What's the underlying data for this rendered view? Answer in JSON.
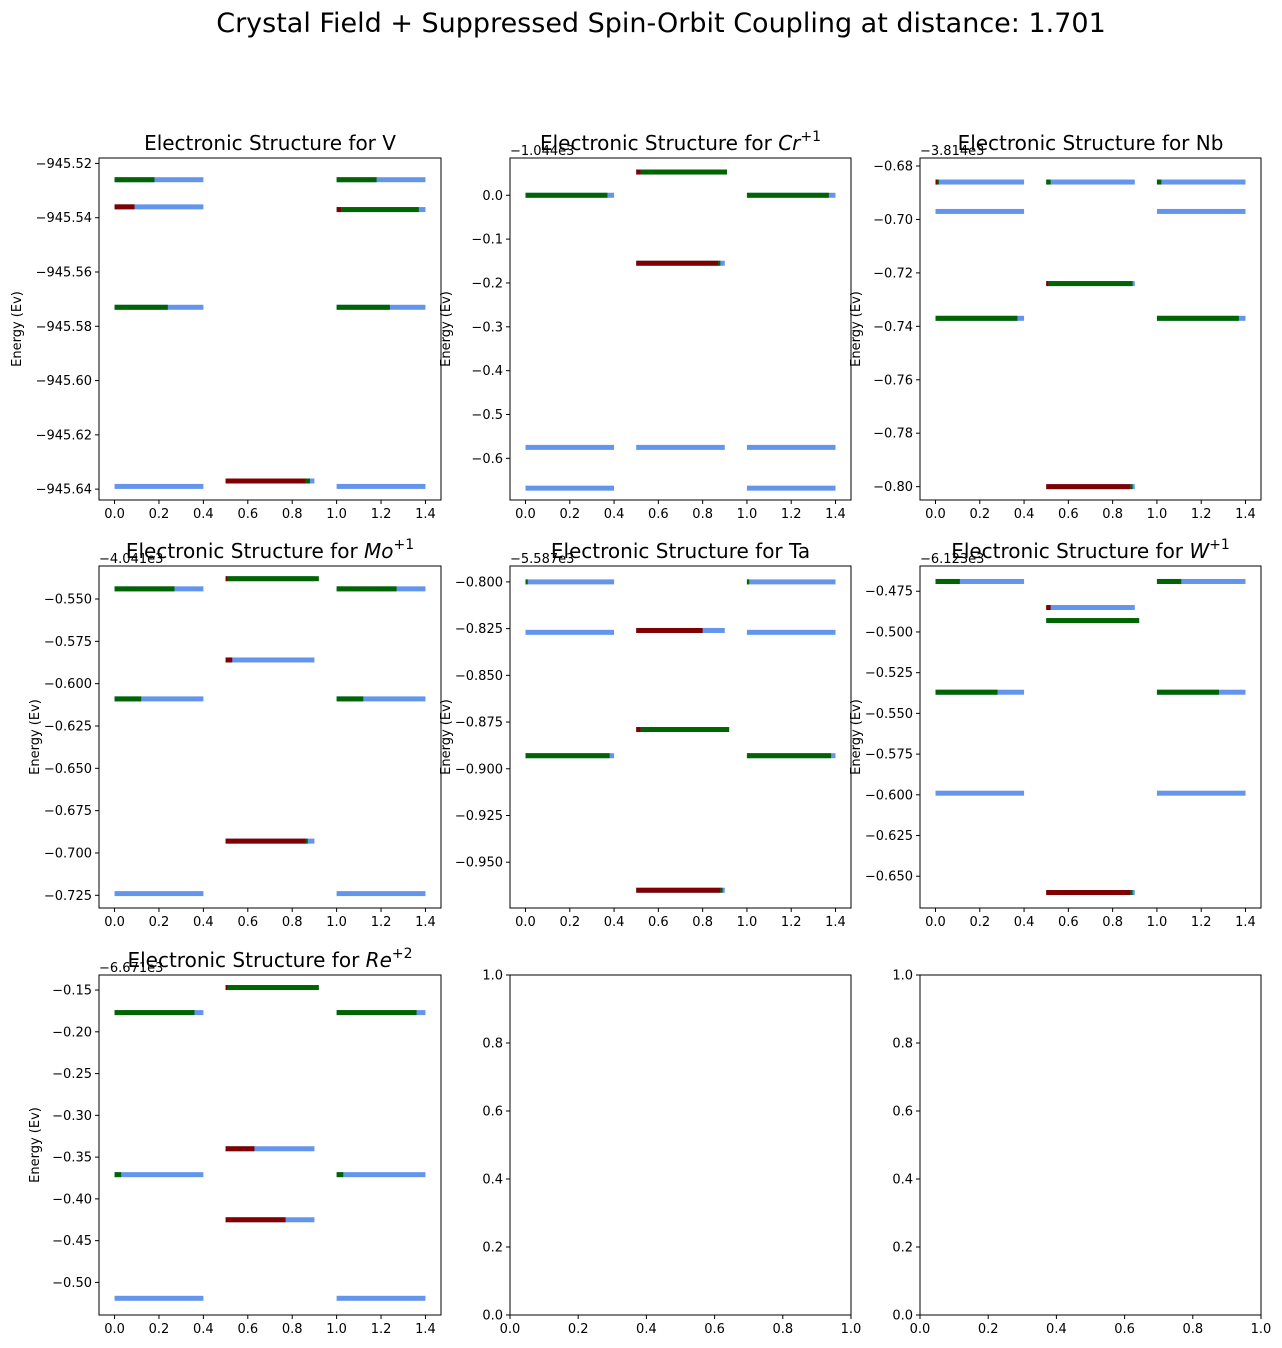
{
  "figure": {
    "title": "Crystal Field + Suppressed Spin-Orbit Coupling at distance: 1.701"
  },
  "colors": {
    "spin_down": "#800000",
    "paired": "#006400",
    "empty": "#6495ED"
  },
  "chart_data": [
    {
      "type": "bar",
      "title": "Electronic Structure for V",
      "title_base": "Electronic Structure for V",
      "title_sup": "",
      "ylabel": "Energy (Ev)",
      "offset_text": "",
      "xlim": [
        -0.07,
        1.47
      ],
      "ylim": [
        -945.644,
        -945.518
      ],
      "xticks": [
        0.0,
        0.2,
        0.4,
        0.6,
        0.8,
        1.0,
        1.2,
        1.4
      ],
      "xtick_labels": [
        "0.0",
        "0.2",
        "0.4",
        "0.6",
        "0.8",
        "1.0",
        "1.2",
        "1.4"
      ],
      "yticks": [
        -945.64,
        -945.62,
        -945.6,
        -945.58,
        -945.56,
        -945.54,
        -945.52
      ],
      "ytick_labels": [
        "−945.64",
        "−945.62",
        "−945.60",
        "−945.58",
        "−945.56",
        "−945.54",
        "−945.52"
      ],
      "levels": [
        {
          "x": 0.0,
          "y": -945.526,
          "fill": [
            0.0,
            0.18
          ],
          "color": "paired"
        },
        {
          "x": 0.0,
          "y": -945.536,
          "fill": [
            0.0,
            0.09
          ],
          "color": "spin_down"
        },
        {
          "x": 0.0,
          "y": -945.573,
          "fill": [
            0.0,
            0.24
          ],
          "color": "paired"
        },
        {
          "x": 0.0,
          "y": -945.639,
          "fill": [
            0.0,
            0.0
          ],
          "color": "paired"
        },
        {
          "x": 0.5,
          "y": -945.637,
          "fill": [
            0.0,
            0.36
          ],
          "color": "spin_down",
          "fill2": [
            0.36,
            0.38
          ],
          "color2": "paired"
        },
        {
          "x": 1.0,
          "y": -945.526,
          "fill": [
            0.0,
            0.18
          ],
          "color": "paired"
        },
        {
          "x": 1.0,
          "y": -945.537,
          "fill": [
            0.0,
            0.02
          ],
          "color": "spin_down",
          "fill2": [
            0.02,
            0.37
          ],
          "color2": "paired"
        },
        {
          "x": 1.0,
          "y": -945.573,
          "fill": [
            0.0,
            0.24
          ],
          "color": "paired"
        },
        {
          "x": 1.0,
          "y": -945.639,
          "fill": [
            0.0,
            0.0
          ],
          "color": "paired"
        }
      ]
    },
    {
      "type": "bar",
      "title": "Electronic Structure for Cr+1",
      "title_base": "Electronic Structure for ",
      "title_italic": "Cr",
      "title_sup": "+1",
      "ylabel": "Energy (Ev)",
      "offset_text": "−1.044e3",
      "xlim": [
        -0.07,
        1.47
      ],
      "ylim": [
        -0.695,
        0.085
      ],
      "xticks": [
        0.0,
        0.2,
        0.4,
        0.6,
        0.8,
        1.0,
        1.2,
        1.4
      ],
      "xtick_labels": [
        "0.0",
        "0.2",
        "0.4",
        "0.6",
        "0.8",
        "1.0",
        "1.2",
        "1.4"
      ],
      "yticks": [
        -0.6,
        -0.5,
        -0.4,
        -0.3,
        -0.2,
        -0.1,
        0.0
      ],
      "ytick_labels": [
        "−0.6",
        "−0.5",
        "−0.4",
        "−0.3",
        "−0.2",
        "−0.1",
        "0.0"
      ],
      "levels": [
        {
          "x": 0.0,
          "y": 0.0,
          "fill": [
            0.0,
            0.37
          ],
          "color": "paired"
        },
        {
          "x": 0.0,
          "y": -0.575,
          "fill": [
            0.0,
            0.0
          ],
          "color": "spin_down"
        },
        {
          "x": 0.0,
          "y": -0.668,
          "fill": [
            0.0,
            0.0
          ],
          "color": "paired"
        },
        {
          "x": 0.5,
          "y": 0.053,
          "fill": [
            0.0,
            0.02
          ],
          "color": "spin_down",
          "fill2": [
            0.02,
            0.41
          ],
          "color2": "paired"
        },
        {
          "x": 0.5,
          "y": -0.155,
          "fill": [
            0.0,
            0.37
          ],
          "color": "spin_down",
          "fill2": [
            0.37,
            0.38
          ],
          "color2": "paired"
        },
        {
          "x": 0.5,
          "y": -0.575,
          "fill": [
            0.0,
            0.0
          ],
          "color": "spin_down"
        },
        {
          "x": 1.0,
          "y": 0.0,
          "fill": [
            0.0,
            0.37
          ],
          "color": "paired"
        },
        {
          "x": 1.0,
          "y": -0.575,
          "fill": [
            0.0,
            0.0
          ],
          "color": "spin_down"
        },
        {
          "x": 1.0,
          "y": -0.668,
          "fill": [
            0.0,
            0.0
          ],
          "color": "paired"
        }
      ]
    },
    {
      "type": "bar",
      "title": "Electronic Structure for Nb",
      "title_base": "Electronic Structure for Nb",
      "title_sup": "",
      "ylabel": "Energy (Ev)",
      "offset_text": "−3.814e3",
      "xlim": [
        -0.07,
        1.47
      ],
      "ylim": [
        -0.805,
        -0.677
      ],
      "xticks": [
        0.0,
        0.2,
        0.4,
        0.6,
        0.8,
        1.0,
        1.2,
        1.4
      ],
      "xtick_labels": [
        "0.0",
        "0.2",
        "0.4",
        "0.6",
        "0.8",
        "1.0",
        "1.2",
        "1.4"
      ],
      "yticks": [
        -0.8,
        -0.78,
        -0.76,
        -0.74,
        -0.72,
        -0.7,
        -0.68
      ],
      "ytick_labels": [
        "−0.80",
        "−0.78",
        "−0.76",
        "−0.74",
        "−0.72",
        "−0.70",
        "−0.68"
      ],
      "levels": [
        {
          "x": 0.0,
          "y": -0.686,
          "fill": [
            0.0,
            0.01
          ],
          "color": "spin_down",
          "fill2": [
            0.01,
            0.015
          ],
          "color2": "paired"
        },
        {
          "x": 0.0,
          "y": -0.697,
          "fill": [
            0.0,
            0.0
          ],
          "color": "paired"
        },
        {
          "x": 0.0,
          "y": -0.737,
          "fill": [
            0.0,
            0.37
          ],
          "color": "paired"
        },
        {
          "x": 0.5,
          "y": -0.686,
          "fill": [
            0.0,
            0.02
          ],
          "color": "paired"
        },
        {
          "x": 0.5,
          "y": -0.724,
          "fill": [
            0.0,
            0.01
          ],
          "color": "spin_down",
          "fill2": [
            0.01,
            0.39
          ],
          "color2": "paired"
        },
        {
          "x": 0.5,
          "y": -0.8,
          "fill": [
            0.0,
            0.38
          ],
          "color": "spin_down",
          "fill2": [
            0.38,
            0.39
          ],
          "color2": "paired"
        },
        {
          "x": 1.0,
          "y": -0.686,
          "fill": [
            0.0,
            0.02
          ],
          "color": "paired"
        },
        {
          "x": 1.0,
          "y": -0.697,
          "fill": [
            0.0,
            0.0
          ],
          "color": "paired"
        },
        {
          "x": 1.0,
          "y": -0.737,
          "fill": [
            0.0,
            0.37
          ],
          "color": "paired"
        }
      ]
    },
    {
      "type": "bar",
      "title": "Electronic Structure for Mo+1",
      "title_base": "Electronic Structure for ",
      "title_italic": "Mo",
      "title_sup": "+1",
      "ylabel": "Energy (Ev)",
      "offset_text": "−4.041e3",
      "xlim": [
        -0.07,
        1.47
      ],
      "ylim": [
        -0.7325,
        -0.5305
      ],
      "xticks": [
        0.0,
        0.2,
        0.4,
        0.6,
        0.8,
        1.0,
        1.2,
        1.4
      ],
      "xtick_labels": [
        "0.0",
        "0.2",
        "0.4",
        "0.6",
        "0.8",
        "1.0",
        "1.2",
        "1.4"
      ],
      "yticks": [
        -0.725,
        -0.7,
        -0.675,
        -0.65,
        -0.625,
        -0.6,
        -0.575,
        -0.55
      ],
      "ytick_labels": [
        "−0.725",
        "−0.700",
        "−0.675",
        "−0.650",
        "−0.625",
        "−0.600",
        "−0.575",
        "−0.550"
      ],
      "levels": [
        {
          "x": 0.0,
          "y": -0.544,
          "fill": [
            0.0,
            0.27
          ],
          "color": "paired"
        },
        {
          "x": 0.0,
          "y": -0.609,
          "fill": [
            0.0,
            0.12
          ],
          "color": "paired"
        },
        {
          "x": 0.0,
          "y": -0.724,
          "fill": [
            0.0,
            0.0
          ],
          "color": "paired"
        },
        {
          "x": 0.5,
          "y": -0.538,
          "fill": [
            0.0,
            0.01
          ],
          "color": "spin_down",
          "fill2": [
            0.01,
            0.42
          ],
          "color2": "paired"
        },
        {
          "x": 0.5,
          "y": -0.586,
          "fill": [
            0.0,
            0.03
          ],
          "color": "spin_down"
        },
        {
          "x": 0.5,
          "y": -0.693,
          "fill": [
            0.0,
            0.36
          ],
          "color": "spin_down",
          "fill2": [
            0.36,
            0.37
          ],
          "color2": "paired"
        },
        {
          "x": 1.0,
          "y": -0.544,
          "fill": [
            0.0,
            0.27
          ],
          "color": "paired"
        },
        {
          "x": 1.0,
          "y": -0.609,
          "fill": [
            0.0,
            0.12
          ],
          "color": "paired"
        },
        {
          "x": 1.0,
          "y": -0.724,
          "fill": [
            0.0,
            0.0
          ],
          "color": "paired"
        }
      ]
    },
    {
      "type": "bar",
      "title": "Electronic Structure for Ta",
      "title_base": "Electronic Structure for Ta",
      "title_sup": "",
      "ylabel": "Energy (Ev)",
      "offset_text": "−5.587e3",
      "xlim": [
        -0.07,
        1.47
      ],
      "ylim": [
        -0.9745,
        -0.7915
      ],
      "xticks": [
        0.0,
        0.2,
        0.4,
        0.6,
        0.8,
        1.0,
        1.2,
        1.4
      ],
      "xtick_labels": [
        "0.0",
        "0.2",
        "0.4",
        "0.6",
        "0.8",
        "1.0",
        "1.2",
        "1.4"
      ],
      "yticks": [
        -0.95,
        -0.925,
        -0.9,
        -0.875,
        -0.85,
        -0.825,
        -0.8
      ],
      "ytick_labels": [
        "−0.950",
        "−0.925",
        "−0.900",
        "−0.875",
        "−0.850",
        "−0.825",
        "−0.800"
      ],
      "levels": [
        {
          "x": 0.0,
          "y": -0.8,
          "fill": [
            0.0,
            0.01
          ],
          "color": "paired"
        },
        {
          "x": 0.0,
          "y": -0.827,
          "fill": [
            0.0,
            0.0
          ],
          "color": "paired"
        },
        {
          "x": 0.0,
          "y": -0.893,
          "fill": [
            0.0,
            0.38
          ],
          "color": "paired"
        },
        {
          "x": 0.5,
          "y": -0.826,
          "fill": [
            0.0,
            0.3
          ],
          "color": "spin_down"
        },
        {
          "x": 0.5,
          "y": -0.879,
          "fill": [
            0.0,
            0.02
          ],
          "color": "spin_down",
          "fill2": [
            0.02,
            0.42
          ],
          "color2": "paired"
        },
        {
          "x": 0.5,
          "y": -0.965,
          "fill": [
            0.0,
            0.38
          ],
          "color": "spin_down",
          "fill2": [
            0.38,
            0.39
          ],
          "color2": "paired"
        },
        {
          "x": 1.0,
          "y": -0.8,
          "fill": [
            0.0,
            0.01
          ],
          "color": "paired"
        },
        {
          "x": 1.0,
          "y": -0.827,
          "fill": [
            0.0,
            0.0
          ],
          "color": "paired"
        },
        {
          "x": 1.0,
          "y": -0.893,
          "fill": [
            0.0,
            0.38
          ],
          "color": "paired"
        }
      ]
    },
    {
      "type": "bar",
      "title": "Electronic Structure for W+1",
      "title_base": "Electronic Structure for ",
      "title_italic": "W",
      "title_sup": "+1",
      "ylabel": "Energy (Ev)",
      "offset_text": "−6.123e3",
      "xlim": [
        -0.07,
        1.47
      ],
      "ylim": [
        -0.6695,
        -0.4595
      ],
      "xticks": [
        0.0,
        0.2,
        0.4,
        0.6,
        0.8,
        1.0,
        1.2,
        1.4
      ],
      "xtick_labels": [
        "0.0",
        "0.2",
        "0.4",
        "0.6",
        "0.8",
        "1.0",
        "1.2",
        "1.4"
      ],
      "yticks": [
        -0.65,
        -0.625,
        -0.6,
        -0.575,
        -0.55,
        -0.525,
        -0.5,
        -0.475
      ],
      "ytick_labels": [
        "−0.650",
        "−0.625",
        "−0.600",
        "−0.575",
        "−0.550",
        "−0.525",
        "−0.500",
        "−0.475"
      ],
      "levels": [
        {
          "x": 0.0,
          "y": -0.469,
          "fill": [
            0.0,
            0.11
          ],
          "color": "paired"
        },
        {
          "x": 0.0,
          "y": -0.537,
          "fill": [
            0.0,
            0.28
          ],
          "color": "paired"
        },
        {
          "x": 0.0,
          "y": -0.599,
          "fill": [
            0.0,
            0.0
          ],
          "color": "paired"
        },
        {
          "x": 0.5,
          "y": -0.485,
          "fill": [
            0.0,
            0.02
          ],
          "color": "spin_down"
        },
        {
          "x": 0.5,
          "y": -0.493,
          "fill": [
            0.0,
            0.42
          ],
          "color": "paired"
        },
        {
          "x": 0.5,
          "y": -0.66,
          "fill": [
            0.0,
            0.38
          ],
          "color": "spin_down",
          "fill2": [
            0.38,
            0.39
          ],
          "color2": "paired"
        },
        {
          "x": 1.0,
          "y": -0.469,
          "fill": [
            0.0,
            0.11
          ],
          "color": "paired"
        },
        {
          "x": 1.0,
          "y": -0.537,
          "fill": [
            0.0,
            0.28
          ],
          "color": "paired"
        },
        {
          "x": 1.0,
          "y": -0.599,
          "fill": [
            0.0,
            0.0
          ],
          "color": "paired"
        }
      ]
    },
    {
      "type": "bar",
      "title": "Electronic Structure for Re+2",
      "title_base": "Electronic Structure for ",
      "title_italic": "Re",
      "title_sup": "+2",
      "ylabel": "Energy (Ev)",
      "offset_text": "−6.671e3",
      "xlim": [
        -0.07,
        1.47
      ],
      "ylim": [
        -0.539,
        -0.132
      ],
      "xticks": [
        0.0,
        0.2,
        0.4,
        0.6,
        0.8,
        1.0,
        1.2,
        1.4
      ],
      "xtick_labels": [
        "0.0",
        "0.2",
        "0.4",
        "0.6",
        "0.8",
        "1.0",
        "1.2",
        "1.4"
      ],
      "yticks": [
        -0.5,
        -0.45,
        -0.4,
        -0.35,
        -0.3,
        -0.25,
        -0.2,
        -0.15
      ],
      "ytick_labels": [
        "−0.50",
        "−0.45",
        "−0.40",
        "−0.35",
        "−0.30",
        "−0.25",
        "−0.20",
        "−0.15"
      ],
      "levels": [
        {
          "x": 0.0,
          "y": -0.177,
          "fill": [
            0.0,
            0.36
          ],
          "color": "paired"
        },
        {
          "x": 0.0,
          "y": -0.371,
          "fill": [
            0.0,
            0.03
          ],
          "color": "paired"
        },
        {
          "x": 0.0,
          "y": -0.519,
          "fill": [
            0.0,
            0.0
          ],
          "color": "paired"
        },
        {
          "x": 0.5,
          "y": -0.147,
          "fill": [
            0.0,
            0.01
          ],
          "color": "spin_down",
          "fill2": [
            0.01,
            0.42
          ],
          "color2": "paired"
        },
        {
          "x": 0.5,
          "y": -0.34,
          "fill": [
            0.0,
            0.13
          ],
          "color": "spin_down"
        },
        {
          "x": 0.5,
          "y": -0.425,
          "fill": [
            0.0,
            0.27
          ],
          "color": "spin_down"
        },
        {
          "x": 1.0,
          "y": -0.177,
          "fill": [
            0.0,
            0.36
          ],
          "color": "paired"
        },
        {
          "x": 1.0,
          "y": -0.371,
          "fill": [
            0.0,
            0.03
          ],
          "color": "paired"
        },
        {
          "x": 1.0,
          "y": -0.519,
          "fill": [
            0.0,
            0.0
          ],
          "color": "paired"
        }
      ]
    },
    {
      "type": "bar",
      "title": "",
      "title_base": "",
      "title_sup": "",
      "ylabel": "",
      "offset_text": "",
      "xlim": [
        0.0,
        1.0
      ],
      "ylim": [
        0.0,
        1.0
      ],
      "xticks": [
        0.0,
        0.2,
        0.4,
        0.6,
        0.8,
        1.0
      ],
      "xtick_labels": [
        "0.0",
        "0.2",
        "0.4",
        "0.6",
        "0.8",
        "1.0"
      ],
      "yticks": [
        0.0,
        0.2,
        0.4,
        0.6,
        0.8,
        1.0
      ],
      "ytick_labels": [
        "0.0",
        "0.2",
        "0.4",
        "0.6",
        "0.8",
        "1.0"
      ],
      "levels": []
    },
    {
      "type": "bar",
      "title": "",
      "title_base": "",
      "title_sup": "",
      "ylabel": "",
      "offset_text": "",
      "xlim": [
        0.0,
        1.0
      ],
      "ylim": [
        0.0,
        1.0
      ],
      "xticks": [
        0.0,
        0.2,
        0.4,
        0.6,
        0.8,
        1.0
      ],
      "xtick_labels": [
        "0.0",
        "0.2",
        "0.4",
        "0.6",
        "0.8",
        "1.0"
      ],
      "yticks": [
        0.0,
        0.2,
        0.4,
        0.6,
        0.8,
        1.0
      ],
      "ytick_labels": [
        "0.0",
        "0.2",
        "0.4",
        "0.6",
        "0.8",
        "1.0"
      ],
      "levels": []
    }
  ]
}
